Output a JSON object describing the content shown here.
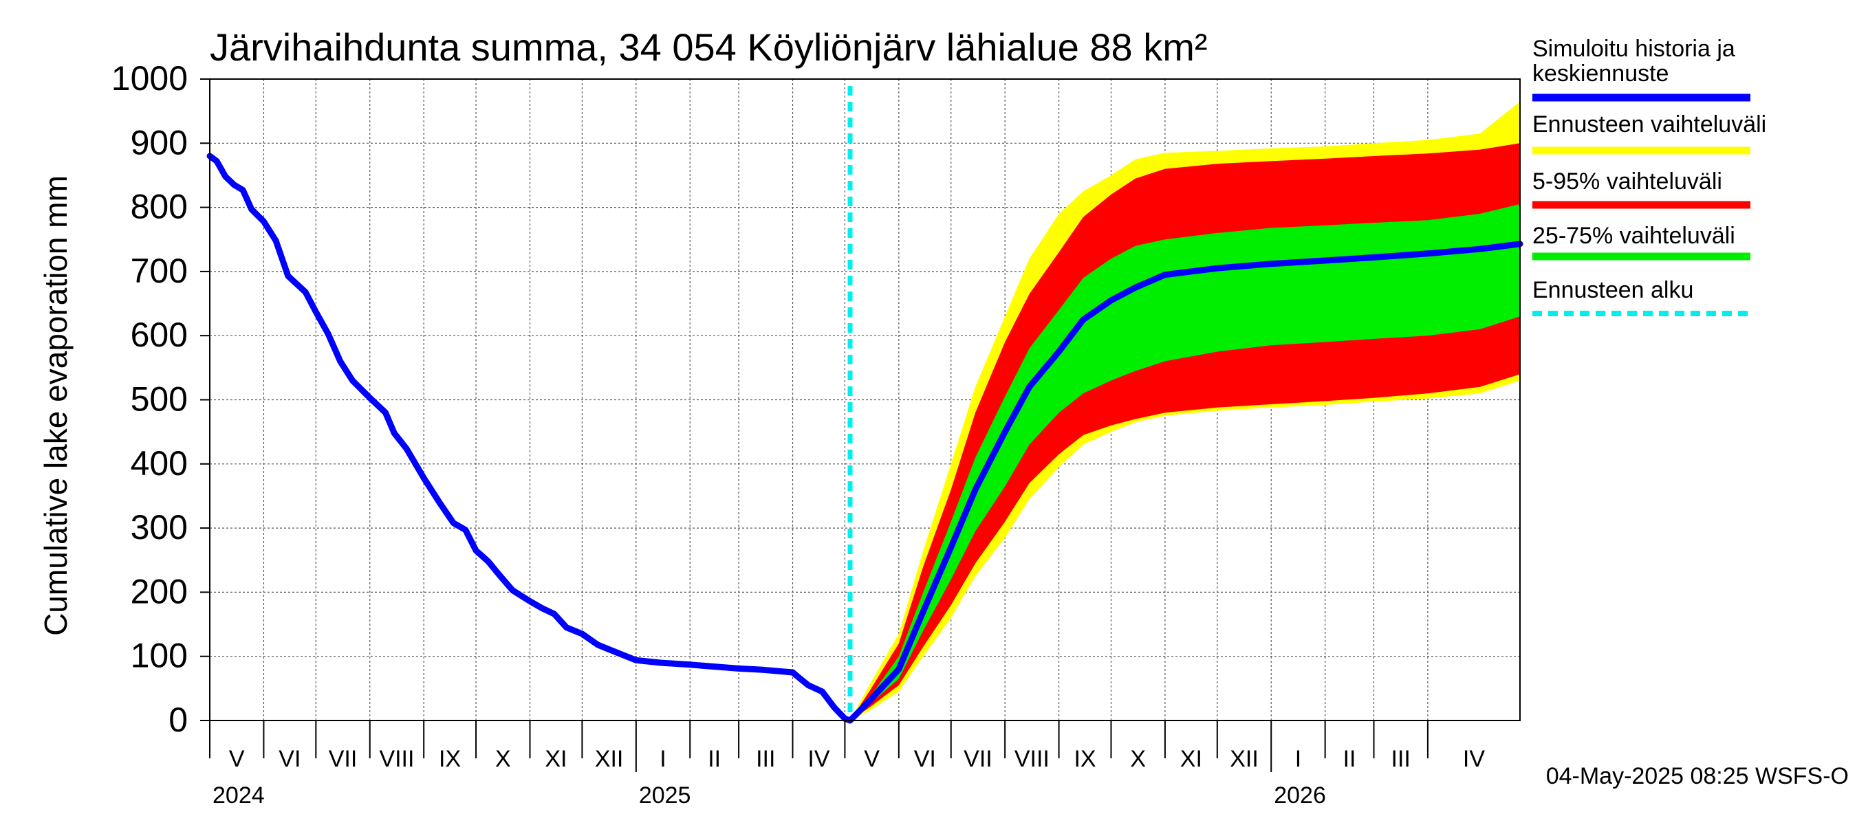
{
  "chart_data": {
    "type": "area",
    "title": "Järvihaihdunta summa, 34 054 Köyliönjärv lähialue 88 km²",
    "ylabel": "Cumulative lake evaporation   mm",
    "ylim": [
      0,
      1000
    ],
    "yticks": [
      0,
      100,
      200,
      300,
      400,
      500,
      600,
      700,
      800,
      900,
      1000
    ],
    "grid": true,
    "xrange": [
      "2024-05-01",
      "2026-05-24"
    ],
    "forecast_start": "2025-05-04",
    "months": [
      {
        "label": "V",
        "start": "2024-05-01"
      },
      {
        "label": "VI",
        "start": "2024-06-01"
      },
      {
        "label": "VII",
        "start": "2024-07-01"
      },
      {
        "label": "VIII",
        "start": "2024-08-01"
      },
      {
        "label": "IX",
        "start": "2024-09-01"
      },
      {
        "label": "X",
        "start": "2024-10-01"
      },
      {
        "label": "XI",
        "start": "2024-11-01"
      },
      {
        "label": "XII",
        "start": "2024-12-01"
      },
      {
        "label": "I",
        "start": "2025-01-01"
      },
      {
        "label": "II",
        "start": "2025-02-01"
      },
      {
        "label": "III",
        "start": "2025-03-01"
      },
      {
        "label": "IV",
        "start": "2025-04-01"
      },
      {
        "label": "V",
        "start": "2025-05-01"
      },
      {
        "label": "VI",
        "start": "2025-06-01"
      },
      {
        "label": "VII",
        "start": "2025-07-01"
      },
      {
        "label": "VIII",
        "start": "2025-08-01"
      },
      {
        "label": "IX",
        "start": "2025-09-01"
      },
      {
        "label": "X",
        "start": "2025-10-01"
      },
      {
        "label": "XI",
        "start": "2025-11-01"
      },
      {
        "label": "XII",
        "start": "2025-12-01"
      },
      {
        "label": "I",
        "start": "2026-01-01"
      },
      {
        "label": "II",
        "start": "2026-02-01"
      },
      {
        "label": "III",
        "start": "2026-03-01"
      },
      {
        "label": "IV",
        "start": "2026-04-01"
      }
    ],
    "years": [
      {
        "label": "2024",
        "date": "2024-05-01"
      },
      {
        "label": "2025",
        "date": "2025-01-01"
      },
      {
        "label": "2026",
        "date": "2026-01-01"
      }
    ],
    "legend_position": "right",
    "legend": [
      {
        "label": "Simuloitu historia ja keskiennuste",
        "lines": [
          "Simuloitu historia ja",
          "keskiennuste"
        ],
        "color": "#0000ff",
        "style": "solid"
      },
      {
        "label": "Ennusteen vaihteluväli",
        "lines": [
          "Ennusteen vaihteluväli"
        ],
        "color": "#ffff00",
        "style": "solid"
      },
      {
        "label": "5-95% vaihteluväli",
        "lines": [
          "5-95% vaihteluväli"
        ],
        "color": "#ff0000",
        "style": "solid"
      },
      {
        "label": "25-75% vaihteluväli",
        "lines": [
          "25-75% vaihteluväli"
        ],
        "color": "#00ee00",
        "style": "solid"
      },
      {
        "label": "Ennusteen alku",
        "lines": [
          "Ennusteen alku"
        ],
        "color": "#00eeee",
        "style": "dashed"
      }
    ],
    "history": {
      "name": "Simuloitu historia ja keskiennuste",
      "points": [
        [
          "2024-05-01",
          880
        ],
        [
          "2024-05-05",
          872
        ],
        [
          "2024-05-10",
          848
        ],
        [
          "2024-05-15",
          835
        ],
        [
          "2024-05-20",
          827
        ],
        [
          "2024-05-25",
          797
        ],
        [
          "2024-06-01",
          778
        ],
        [
          "2024-06-08",
          748
        ],
        [
          "2024-06-15",
          693
        ],
        [
          "2024-06-25",
          668
        ],
        [
          "2024-07-01",
          637
        ],
        [
          "2024-07-08",
          603
        ],
        [
          "2024-07-15",
          560
        ],
        [
          "2024-07-22",
          530
        ],
        [
          "2024-08-01",
          503
        ],
        [
          "2024-08-10",
          480
        ],
        [
          "2024-08-15",
          448
        ],
        [
          "2024-08-22",
          424
        ],
        [
          "2024-09-01",
          378
        ],
        [
          "2024-09-10",
          340
        ],
        [
          "2024-09-18",
          308
        ],
        [
          "2024-09-25",
          297
        ],
        [
          "2024-10-01",
          265
        ],
        [
          "2024-10-08",
          248
        ],
        [
          "2024-10-15",
          225
        ],
        [
          "2024-10-22",
          203
        ],
        [
          "2024-11-01",
          186
        ],
        [
          "2024-11-08",
          175
        ],
        [
          "2024-11-15",
          166
        ],
        [
          "2024-11-22",
          145
        ],
        [
          "2024-12-01",
          135
        ],
        [
          "2024-12-10",
          118
        ],
        [
          "2024-12-20",
          107
        ],
        [
          "2025-01-01",
          94
        ],
        [
          "2025-01-15",
          90
        ],
        [
          "2025-02-01",
          87
        ],
        [
          "2025-02-15",
          84
        ],
        [
          "2025-03-01",
          81
        ],
        [
          "2025-03-15",
          79
        ],
        [
          "2025-04-01",
          75
        ],
        [
          "2025-04-05",
          66
        ],
        [
          "2025-04-10",
          55
        ],
        [
          "2025-04-18",
          45
        ],
        [
          "2025-04-25",
          20
        ],
        [
          "2025-05-01",
          3
        ]
      ]
    },
    "forecast": {
      "dates": [
        "2025-05-04",
        "2025-05-15",
        "2025-06-01",
        "2025-06-15",
        "2025-07-01",
        "2025-07-15",
        "2025-08-01",
        "2025-08-15",
        "2025-09-01",
        "2025-09-15",
        "2025-10-01",
        "2025-10-15",
        "2025-11-01",
        "2025-12-01",
        "2026-01-01",
        "2026-02-01",
        "2026-03-01",
        "2026-04-01",
        "2026-05-01",
        "2026-05-24"
      ],
      "median": [
        0,
        30,
        80,
        170,
        270,
        360,
        450,
        520,
        575,
        625,
        655,
        675,
        695,
        705,
        712,
        717,
        722,
        728,
        735,
        743
      ],
      "p25": [
        0,
        25,
        65,
        140,
        220,
        295,
        365,
        430,
        480,
        510,
        530,
        545,
        560,
        575,
        585,
        590,
        595,
        600,
        610,
        630
      ],
      "p75": [
        0,
        35,
        100,
        200,
        310,
        410,
        505,
        580,
        640,
        690,
        720,
        740,
        750,
        760,
        768,
        772,
        776,
        780,
        790,
        805
      ],
      "p5": [
        0,
        20,
        55,
        115,
        180,
        245,
        310,
        370,
        415,
        445,
        460,
        470,
        480,
        488,
        493,
        498,
        503,
        510,
        520,
        540
      ],
      "p95": [
        0,
        45,
        120,
        240,
        360,
        480,
        590,
        665,
        730,
        785,
        820,
        845,
        860,
        868,
        872,
        876,
        880,
        884,
        890,
        900
      ],
      "min": [
        0,
        15,
        45,
        100,
        160,
        225,
        285,
        345,
        395,
        430,
        450,
        465,
        475,
        483,
        488,
        492,
        497,
        502,
        510,
        530
      ],
      "max": [
        0,
        55,
        135,
        265,
        400,
        520,
        630,
        720,
        790,
        825,
        850,
        875,
        885,
        888,
        892,
        895,
        900,
        905,
        915,
        965
      ]
    },
    "timestamp": "04-May-2025 08:25 WSFS-O"
  }
}
